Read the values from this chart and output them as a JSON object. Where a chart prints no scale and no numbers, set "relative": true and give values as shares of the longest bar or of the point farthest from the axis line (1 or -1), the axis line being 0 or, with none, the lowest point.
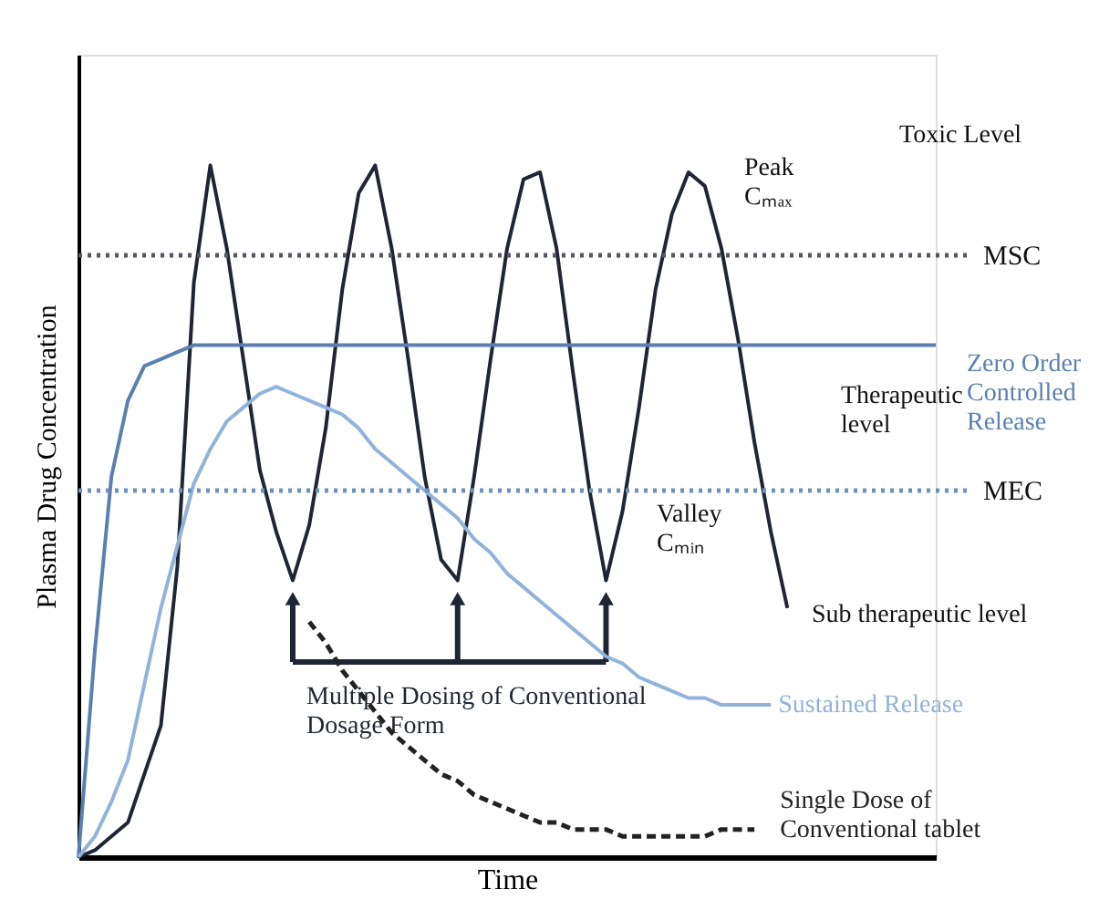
{
  "chart_data": {
    "type": "line",
    "relative": true,
    "xlabel": "Time",
    "ylabel": "Plasma Drug Concentration",
    "categories": [
      null,
      null,
      null,
      null,
      null,
      null,
      null,
      null,
      null,
      null,
      null,
      null,
      null,
      null,
      null,
      null,
      null,
      null,
      null,
      null,
      null,
      null,
      null,
      null,
      null,
      null,
      null,
      null,
      null,
      null,
      null,
      null,
      null,
      null,
      null,
      null,
      null,
      null,
      null,
      null,
      null,
      null,
      null,
      null,
      null,
      null,
      null,
      null,
      null,
      null,
      null,
      null,
      null
    ],
    "series": [
      {
        "name": "Multiple Dosing of Conventional\nDosage Form",
        "color": "#1f2633",
        "line_style": "solid",
        "values": [
          0,
          0.01,
          0.03,
          0.05,
          0.12,
          0.19,
          0.42,
          0.83,
          1.0,
          0.88,
          0.72,
          0.56,
          0.47,
          0.4,
          0.48,
          0.62,
          0.82,
          0.96,
          1.0,
          0.88,
          0.72,
          0.55,
          0.43,
          0.4,
          0.55,
          0.72,
          0.88,
          0.98,
          0.99,
          0.88,
          0.7,
          0.53,
          0.4,
          0.5,
          0.65,
          0.82,
          0.93,
          0.99,
          0.97,
          0.88,
          0.75,
          0.6,
          0.47,
          0.36,
          null,
          null,
          null,
          null,
          null,
          null,
          null,
          null,
          null
        ]
      },
      {
        "name": "Zero Order\nControlled\nRelease",
        "color": "#5b7fb0",
        "line_style": "solid",
        "values": [
          0,
          0.3,
          0.55,
          0.66,
          0.71,
          0.72,
          0.73,
          0.74,
          0.74,
          0.74,
          0.74,
          0.74,
          0.74,
          0.74,
          0.74,
          0.74,
          0.74,
          0.74,
          0.74,
          0.74,
          0.74,
          0.74,
          0.74,
          0.74,
          0.74,
          0.74,
          0.74,
          0.74,
          0.74,
          0.74,
          0.74,
          0.74,
          0.74,
          0.74,
          0.74,
          0.74,
          0.74,
          0.74,
          0.74,
          0.74,
          0.74,
          0.74,
          0.74,
          0.74,
          0.74,
          0.74,
          0.74,
          0.74,
          0.74,
          0.74,
          0.74,
          0.74,
          0.74
        ]
      },
      {
        "name": "Sustained Release",
        "color": "#92b2dc",
        "line_style": "solid",
        "values": [
          0,
          0.03,
          0.08,
          0.14,
          0.25,
          0.36,
          0.45,
          0.54,
          0.59,
          0.63,
          0.65,
          0.67,
          0.68,
          0.67,
          0.66,
          0.65,
          0.64,
          0.62,
          0.59,
          0.57,
          0.55,
          0.53,
          0.51,
          0.49,
          0.46,
          0.44,
          0.41,
          0.39,
          0.37,
          0.35,
          0.33,
          0.31,
          0.29,
          0.28,
          0.26,
          0.25,
          0.24,
          0.23,
          0.23,
          0.22,
          0.22,
          0.22,
          0.22,
          null,
          null,
          null,
          null,
          null,
          null,
          null,
          null,
          null,
          null
        ]
      },
      {
        "name": "Single Dose of\nConventional tablet",
        "color": "#222222",
        "line_style": "dashed",
        "values": [
          null,
          null,
          null,
          null,
          null,
          null,
          null,
          null,
          null,
          null,
          null,
          null,
          null,
          null,
          0.34,
          0.31,
          0.27,
          0.24,
          0.21,
          0.18,
          0.16,
          0.14,
          0.12,
          0.11,
          0.09,
          0.08,
          0.07,
          0.06,
          0.05,
          0.05,
          0.04,
          0.04,
          0.04,
          0.03,
          0.03,
          0.03,
          0.03,
          0.03,
          0.03,
          0.04,
          0.04,
          0.04,
          null,
          null,
          null,
          null,
          null,
          null,
          null,
          null,
          null,
          null,
          null
        ]
      }
    ],
    "ref_lines": [
      {
        "axis": "y",
        "value": 0.87,
        "label": "MSC",
        "color": "#555566",
        "line_style": "dotted"
      },
      {
        "axis": "y",
        "value": 0.53,
        "label": "MEC",
        "color": "#6f8fbf",
        "line_style": "dotted"
      }
    ],
    "annotations": [
      "Toxic Level",
      "Peak\nCₘₐₓ",
      "Therapeutic\nlevel",
      "Valley\nCₘᵢₙ",
      "Sub therapeutic level"
    ]
  }
}
